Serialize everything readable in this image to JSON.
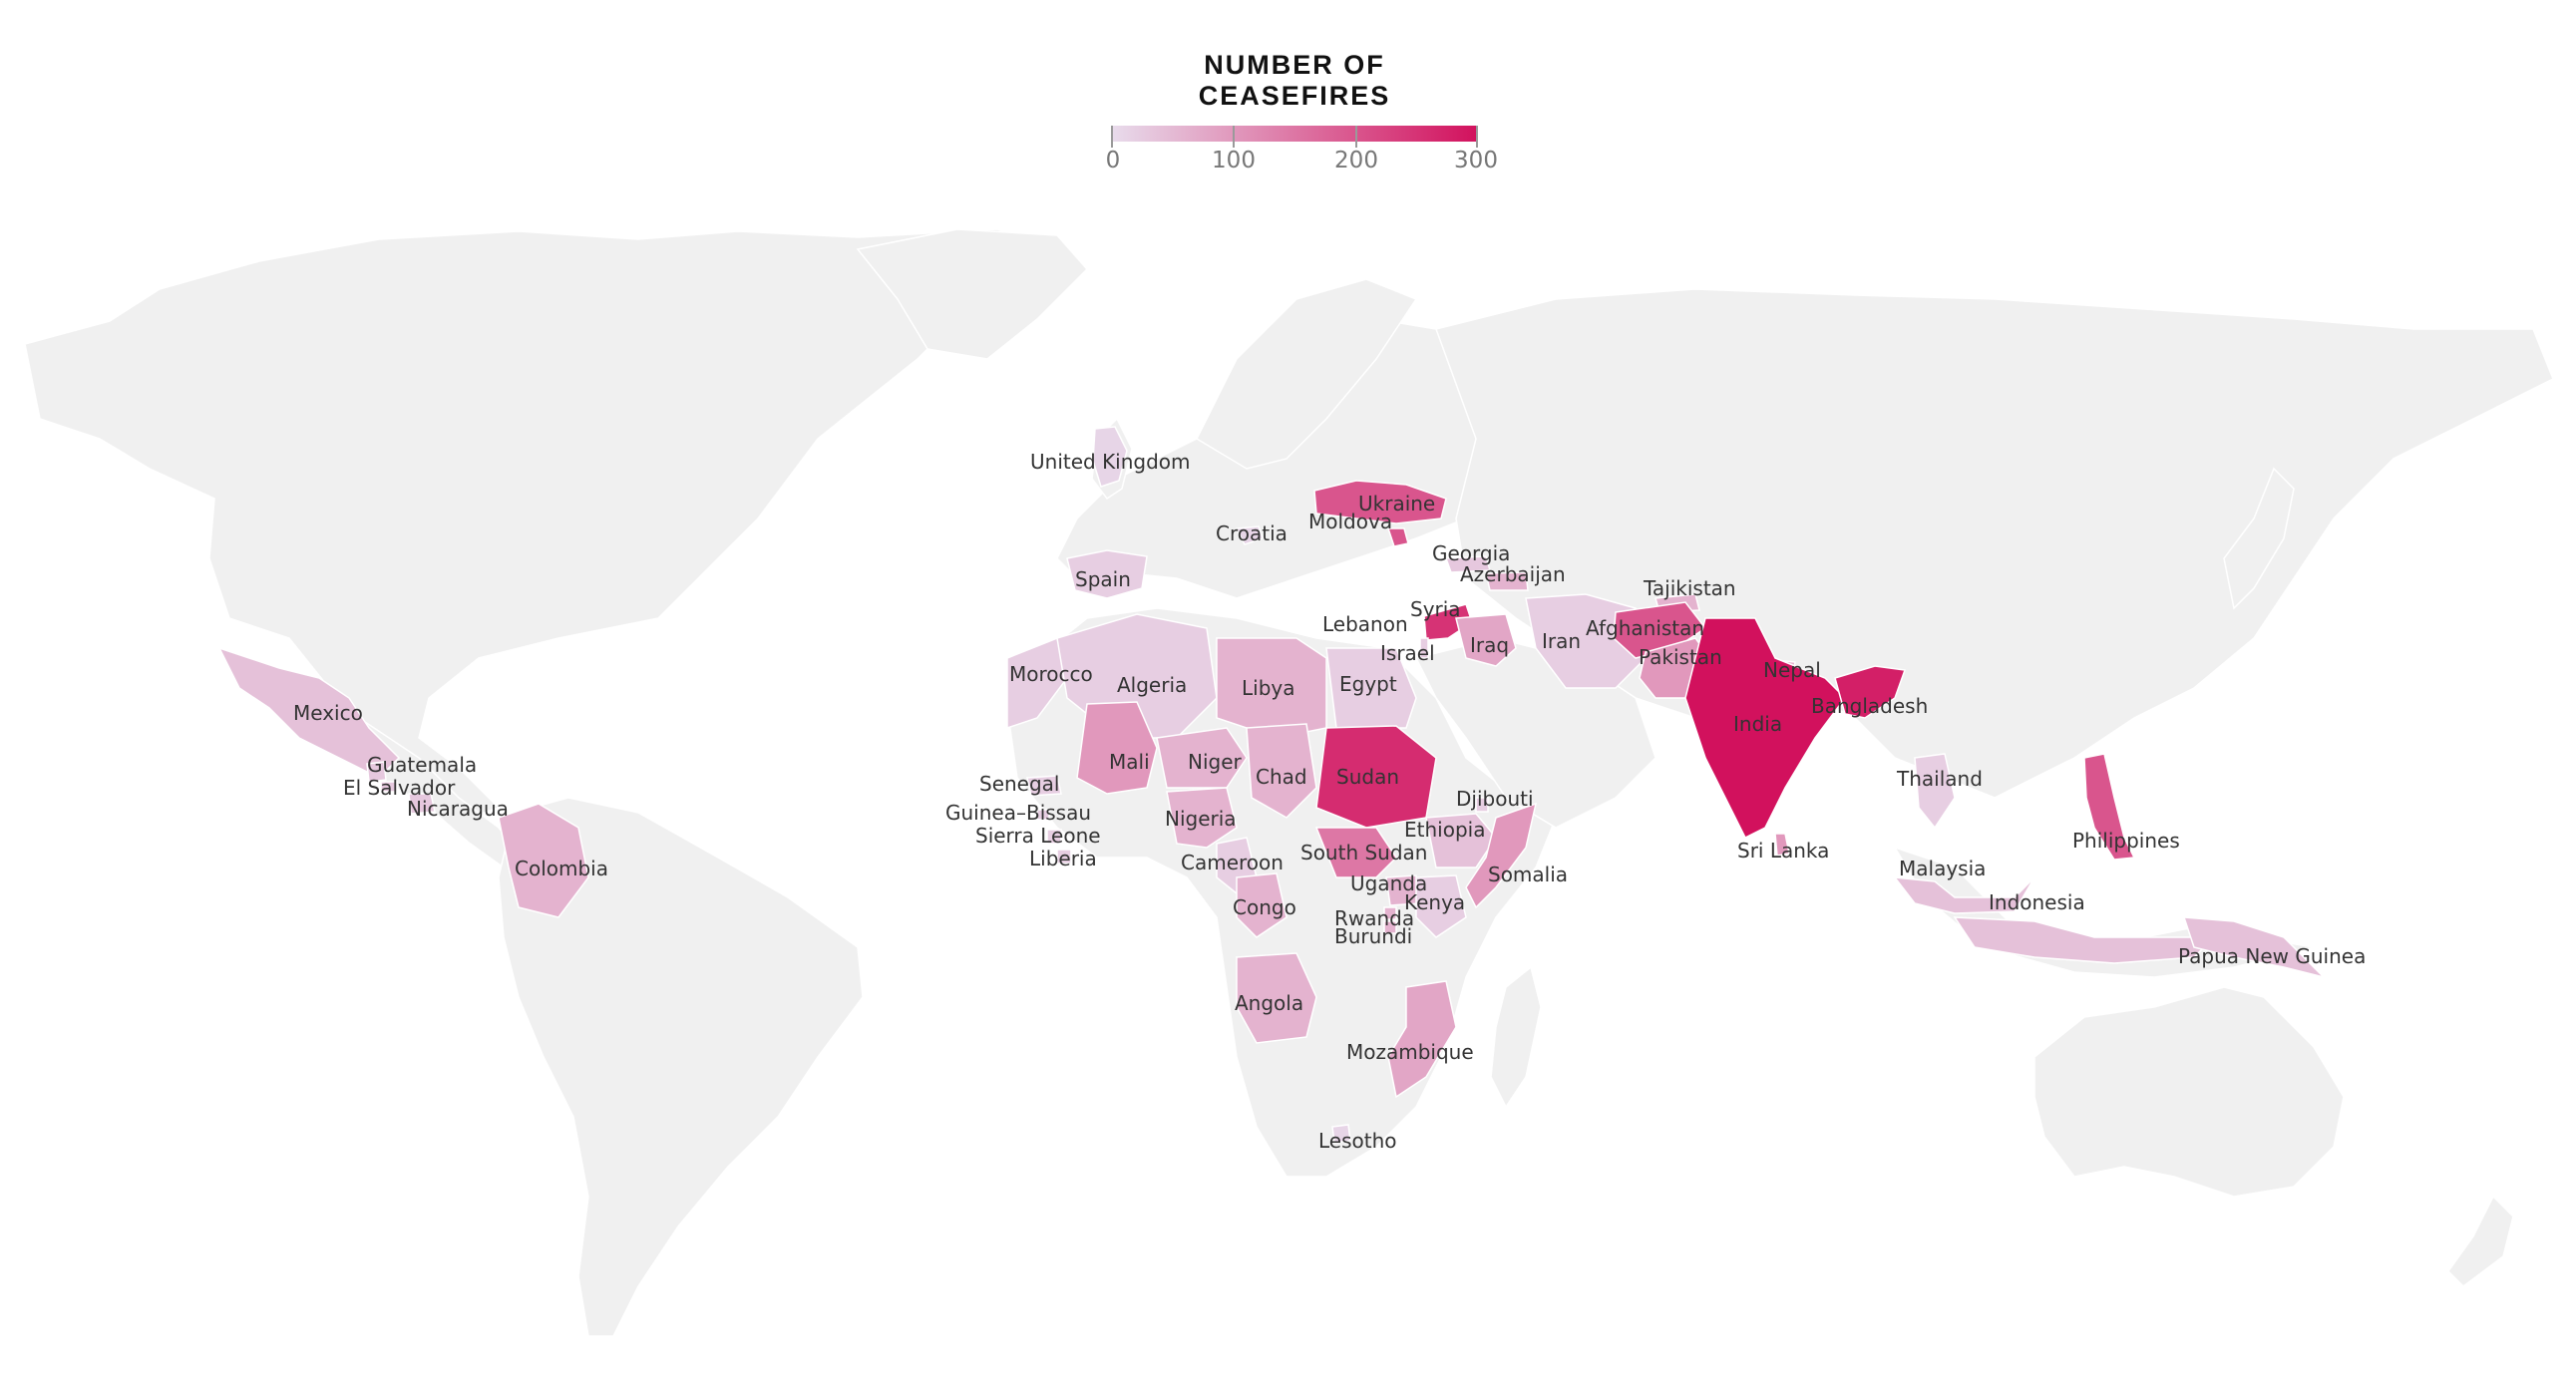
{
  "legend": {
    "title": "NUMBER OF CEASEFIRES",
    "ticks": [
      "0",
      "100",
      "200",
      "300"
    ],
    "min": 0,
    "max": 300,
    "color_low": "#e8dcec",
    "color_high": "#d2115d"
  },
  "colors": {
    "land": "#f0f0f0",
    "border": "#ffffff",
    "background": "#ffffff"
  },
  "countries": [
    {
      "name": "United Kingdom",
      "ceasefires": 10
    },
    {
      "name": "Ukraine",
      "ceasefires": 200
    },
    {
      "name": "Moldova",
      "ceasefires": 200
    },
    {
      "name": "Croatia",
      "ceasefires": 10
    },
    {
      "name": "Georgia",
      "ceasefires": 30
    },
    {
      "name": "Azerbaijan",
      "ceasefires": 60
    },
    {
      "name": "Spain",
      "ceasefires": 20
    },
    {
      "name": "Tajikistan",
      "ceasefires": 60
    },
    {
      "name": "Lebanon",
      "ceasefires": 20
    },
    {
      "name": "Syria",
      "ceasefires": 250
    },
    {
      "name": "Iran",
      "ceasefires": 20
    },
    {
      "name": "Afghanistan",
      "ceasefires": 200
    },
    {
      "name": "Israel",
      "ceasefires": 20
    },
    {
      "name": "Iraq",
      "ceasefires": 80
    },
    {
      "name": "Pakistan",
      "ceasefires": 100
    },
    {
      "name": "Nepal",
      "ceasefires": 60
    },
    {
      "name": "Morocco",
      "ceasefires": 20
    },
    {
      "name": "Algeria",
      "ceasefires": 20
    },
    {
      "name": "Libya",
      "ceasefires": 60
    },
    {
      "name": "Egypt",
      "ceasefires": 20
    },
    {
      "name": "India",
      "ceasefires": 300
    },
    {
      "name": "Bangladesh",
      "ceasefires": 280
    },
    {
      "name": "Mexico",
      "ceasefires": 40
    },
    {
      "name": "Mali",
      "ceasefires": 100
    },
    {
      "name": "Niger",
      "ceasefires": 60
    },
    {
      "name": "Chad",
      "ceasefires": 60
    },
    {
      "name": "Sudan",
      "ceasefires": 260
    },
    {
      "name": "Guatemala",
      "ceasefires": 30
    },
    {
      "name": "El Salvador",
      "ceasefires": 30
    },
    {
      "name": "Thailand",
      "ceasefires": 20
    },
    {
      "name": "Senegal",
      "ceasefires": 20
    },
    {
      "name": "Djibouti",
      "ceasefires": 20
    },
    {
      "name": "Nicaragua",
      "ceasefires": 30
    },
    {
      "name": "Guinea–Bissau",
      "ceasefires": 20
    },
    {
      "name": "Nigeria",
      "ceasefires": 60
    },
    {
      "name": "Ethiopia",
      "ceasefires": 40
    },
    {
      "name": "Sierra Leone",
      "ceasefires": 20
    },
    {
      "name": "Sri Lanka",
      "ceasefires": 100
    },
    {
      "name": "Philippines",
      "ceasefires": 200
    },
    {
      "name": "Liberia",
      "ceasefires": 20
    },
    {
      "name": "South Sudan",
      "ceasefires": 150
    },
    {
      "name": "Cameroon",
      "ceasefires": 20
    },
    {
      "name": "Somalia",
      "ceasefires": 100
    },
    {
      "name": "Colombia",
      "ceasefires": 60
    },
    {
      "name": "Malaysia",
      "ceasefires": 40
    },
    {
      "name": "Uganda",
      "ceasefires": 60
    },
    {
      "name": "Kenya",
      "ceasefires": 20
    },
    {
      "name": "Congo",
      "ceasefires": 60
    },
    {
      "name": "Indonesia",
      "ceasefires": 40
    },
    {
      "name": "Rwanda",
      "ceasefires": 60
    },
    {
      "name": "Burundi",
      "ceasefires": 60
    },
    {
      "name": "Papua New Guinea",
      "ceasefires": 40
    },
    {
      "name": "Angola",
      "ceasefires": 60
    },
    {
      "name": "Mozambique",
      "ceasefires": 80
    },
    {
      "name": "Lesotho",
      "ceasefires": 10
    }
  ]
}
